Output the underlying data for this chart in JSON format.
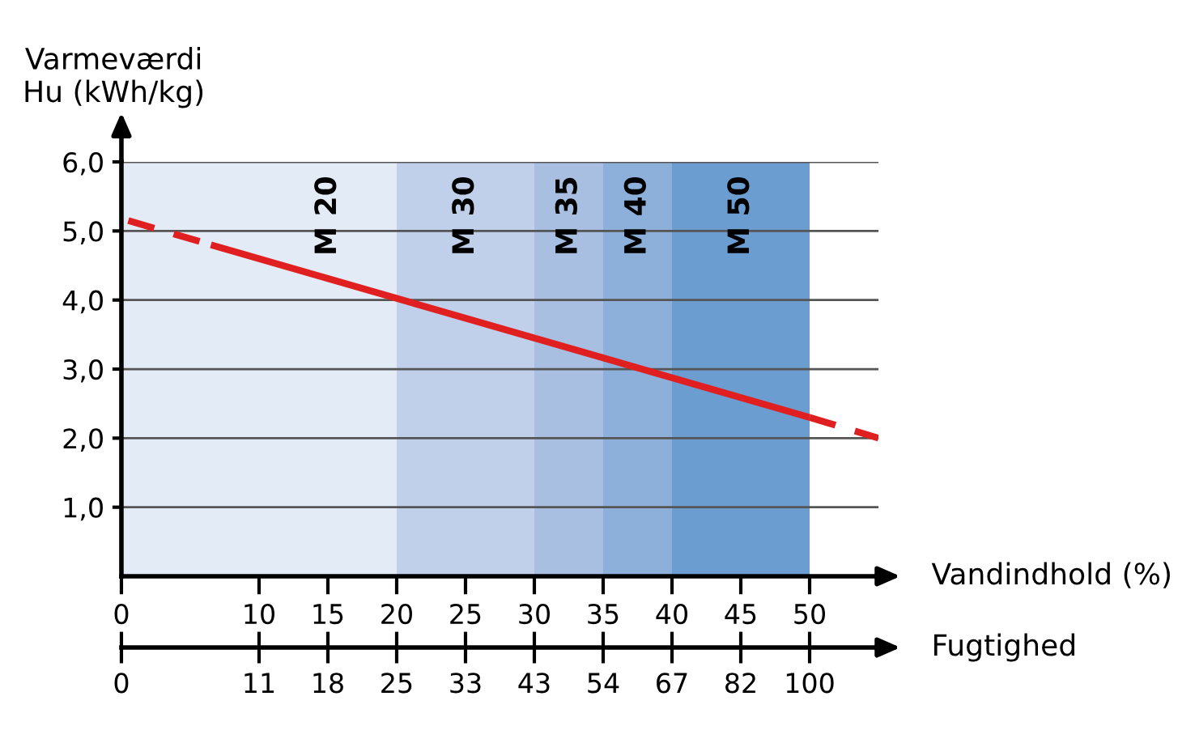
{
  "chart_data": {
    "type": "line",
    "ylabel": "Varmeværdi\nHu (kWh/kg)",
    "xlabel": "Vandindhold (%)",
    "series": [
      {
        "color": "#e02020",
        "line_style": "dashed",
        "x": [
          0.5,
          6.5
        ],
        "values": [
          5.15,
          4.8
        ]
      },
      {
        "color": "#e02020",
        "line_style": "solid",
        "x": [
          6.5,
          50
        ],
        "values": [
          4.8,
          2.3
        ]
      },
      {
        "color": "#e02020",
        "line_style": "dashed",
        "x": [
          50,
          55
        ],
        "values": [
          2.3,
          2.0
        ]
      }
    ],
    "xlim": [
      0,
      55
    ],
    "xticks": [
      0,
      10,
      15,
      20,
      25,
      30,
      35,
      40,
      45,
      50
    ],
    "annotations": [
      "Fugtighed",
      "0",
      "11",
      "18",
      "25",
      "33",
      "43",
      "54",
      "67",
      "82",
      "100"
    ],
    "ylim": [
      0,
      6
    ],
    "yticks": [
      {
        "value": 1,
        "label": "1,0"
      },
      {
        "value": 2,
        "label": "2,0"
      },
      {
        "value": 3,
        "label": "3,0"
      },
      {
        "value": 4,
        "label": "4,0"
      },
      {
        "value": 5,
        "label": "5,0"
      },
      {
        "value": 6,
        "label": "6,0"
      }
    ],
    "bands": [
      {
        "axis": "x",
        "from": 0,
        "to": 20,
        "label": "M 20",
        "color": "#e3ebf6"
      },
      {
        "axis": "x",
        "from": 20,
        "to": 30,
        "label": "M 30",
        "color": "#c1d0ea"
      },
      {
        "axis": "x",
        "from": 30,
        "to": 35,
        "label": "M 35",
        "color": "#a8bfe2"
      },
      {
        "axis": "x",
        "from": 35,
        "to": 40,
        "label": "M 40",
        "color": "#8db0db"
      },
      {
        "axis": "x",
        "from": 40,
        "to": 50,
        "label": "M 50",
        "color": "#6c9dd0"
      }
    ],
    "grid": "y"
  }
}
